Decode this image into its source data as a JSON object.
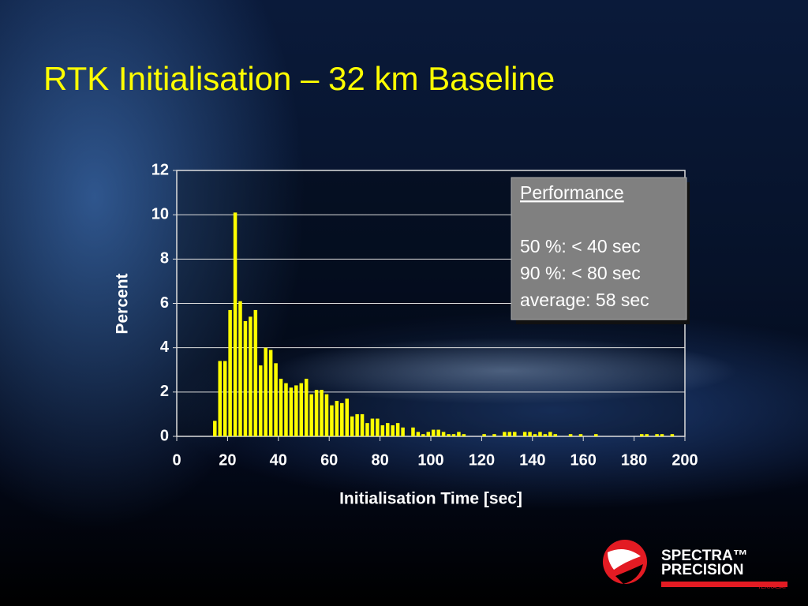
{
  "chart_data": {
    "type": "histogram",
    "title": "RTK Initialisation – 32 km Baseline",
    "x_label": "Initialisation Time [sec]",
    "y_label": "Percent",
    "bins": [
      0,
      2,
      4,
      6,
      8,
      10,
      12,
      14,
      16,
      18,
      20,
      22,
      24,
      26,
      28,
      30,
      32,
      34,
      36,
      38,
      40,
      42,
      44,
      46,
      48,
      50,
      52,
      54,
      56,
      58,
      60,
      62,
      64,
      66,
      68,
      70,
      72,
      74,
      76,
      78,
      80,
      82,
      84,
      86,
      88,
      90,
      92,
      94,
      96,
      98,
      100,
      102,
      104,
      106,
      108,
      110,
      112,
      114,
      116,
      118,
      120,
      122,
      124,
      126,
      128,
      130,
      132,
      134,
      136,
      138,
      140,
      142,
      144,
      146,
      148,
      150,
      152,
      154,
      156,
      158,
      160,
      162,
      164,
      166,
      168,
      170,
      172,
      174,
      176,
      178,
      180,
      182,
      184,
      186,
      188,
      190,
      192,
      194,
      196,
      198,
      200
    ],
    "values": [
      0,
      0,
      0,
      0,
      0,
      0,
      0,
      0.7,
      3.4,
      3.4,
      5.7,
      10.1,
      6.1,
      5.2,
      5.4,
      5.7,
      3.2,
      4.0,
      3.9,
      3.3,
      2.6,
      2.4,
      2.2,
      2.3,
      2.4,
      2.6,
      1.9,
      2.1,
      2.1,
      1.9,
      1.4,
      1.6,
      1.5,
      1.7,
      0.9,
      1.0,
      1.0,
      0.6,
      0.8,
      0.8,
      0.5,
      0.6,
      0.5,
      0.6,
      0.4,
      0,
      0.4,
      0.2,
      0.1,
      0.2,
      0.3,
      0.3,
      0.2,
      0.1,
      0.1,
      0.2,
      0.1,
      0,
      0,
      0,
      0.1,
      0,
      0.1,
      0,
      0.2,
      0.2,
      0.2,
      0,
      0.2,
      0.2,
      0.1,
      0.2,
      0.1,
      0.2,
      0.1,
      0,
      0,
      0.1,
      0,
      0.1,
      0,
      0,
      0.1,
      0,
      0,
      0,
      0,
      0,
      0,
      0,
      0,
      0.1,
      0.1,
      0,
      0.1,
      0.1,
      0,
      0.1,
      0,
      0
    ],
    "color": "#ffff00",
    "xlim": [
      0,
      200
    ],
    "xticks": [
      0,
      20,
      40,
      60,
      80,
      100,
      120,
      140,
      160,
      180,
      200
    ],
    "ylim": [
      0,
      12
    ],
    "yticks": [
      0,
      2,
      4,
      6,
      8,
      10,
      12
    ],
    "grid": true,
    "annotation": {
      "heading": "Performance",
      "lines": [
        "50 %: < 40 sec",
        "90 %: < 80 sec",
        "average: 58 sec"
      ]
    }
  },
  "logo": {
    "line1": "SPECTRA™",
    "line2": "PRECISION",
    "tag": "TERRASAT"
  }
}
